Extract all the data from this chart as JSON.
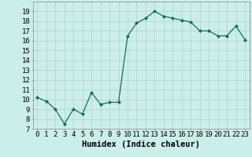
{
  "x": [
    0,
    1,
    2,
    3,
    4,
    5,
    6,
    7,
    8,
    9,
    10,
    11,
    12,
    13,
    14,
    15,
    16,
    17,
    18,
    19,
    20,
    21,
    22,
    23
  ],
  "y": [
    10.2,
    9.8,
    9.0,
    7.5,
    9.0,
    8.5,
    10.7,
    9.5,
    9.7,
    9.7,
    16.5,
    17.8,
    18.3,
    19.0,
    18.5,
    18.3,
    18.1,
    17.9,
    17.0,
    17.0,
    16.5,
    16.5,
    17.5,
    16.1
  ],
  "line_color": "#1a6b5a",
  "marker": "D",
  "marker_size": 2,
  "bg_color": "#cceee8",
  "grid_color": "#aad4cc",
  "xlabel": "Humidex (Indice chaleur)",
  "ylim": [
    7,
    20
  ],
  "xlim": [
    -0.5,
    23.5
  ],
  "yticks": [
    7,
    8,
    9,
    10,
    11,
    12,
    13,
    14,
    15,
    16,
    17,
    18,
    19
  ],
  "xticks": [
    0,
    1,
    2,
    3,
    4,
    5,
    6,
    7,
    8,
    9,
    10,
    11,
    12,
    13,
    14,
    15,
    16,
    17,
    18,
    19,
    20,
    21,
    22,
    23
  ],
  "xtick_labels": [
    "0",
    "1",
    "2",
    "3",
    "4",
    "5",
    "6",
    "7",
    "8",
    "9",
    "10",
    "11",
    "12",
    "13",
    "14",
    "15",
    "16",
    "17",
    "18",
    "19",
    "20",
    "21",
    "22",
    "23"
  ],
  "xlabel_fontsize": 7.5,
  "tick_fontsize": 6.5
}
